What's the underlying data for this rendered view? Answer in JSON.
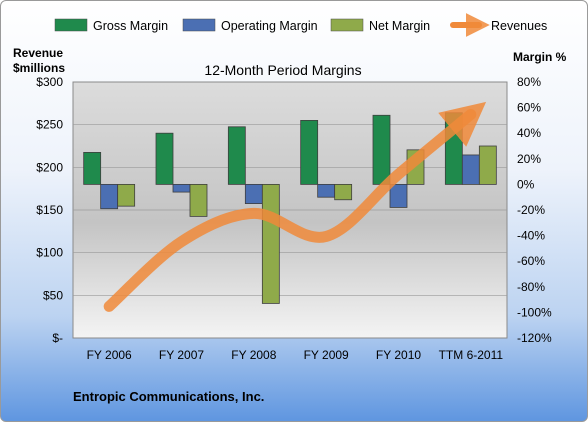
{
  "chart_data": {
    "type": "bar",
    "title": "12-Month Period Margins",
    "categories": [
      "FY 2006",
      "FY 2007",
      "FY 2008",
      "FY 2009",
      "FY 2010",
      "TTM 6-2011"
    ],
    "series": [
      {
        "name": "Gross Margin",
        "axis": "right",
        "color": "#1f8a4c",
        "values": [
          25,
          40,
          45,
          50,
          54,
          56
        ]
      },
      {
        "name": "Operating Margin",
        "axis": "right",
        "color": "#4b6fb3",
        "values": [
          -19,
          -6,
          -15,
          -10,
          -18,
          23
        ]
      },
      {
        "name": "Net Margin",
        "axis": "right",
        "color": "#8faa4a",
        "values": [
          -17,
          -25,
          -93,
          -12,
          27,
          30
        ]
      },
      {
        "name": "Revenues",
        "axis": "left",
        "type": "line",
        "color": "#f08a3a",
        "values": [
          37,
          113,
          146,
          119,
          192,
          262
        ]
      }
    ],
    "left_axis": {
      "title_line1": "Revenue",
      "title_line2": "$millions",
      "range": [
        0,
        300
      ],
      "ticks": [
        {
          "value": 300,
          "label": "$300"
        },
        {
          "value": 250,
          "label": "$250"
        },
        {
          "value": 200,
          "label": "$200"
        },
        {
          "value": 150,
          "label": "$150"
        },
        {
          "value": 100,
          "label": "$100"
        },
        {
          "value": 50,
          "label": "$50"
        },
        {
          "value": 0,
          "label": "$-"
        }
      ]
    },
    "right_axis": {
      "title": "Margin %",
      "range": [
        -120,
        80
      ],
      "ticks": [
        {
          "value": 80,
          "label": "80%"
        },
        {
          "value": 60,
          "label": "60%"
        },
        {
          "value": 40,
          "label": "40%"
        },
        {
          "value": 20,
          "label": "20%"
        },
        {
          "value": 0,
          "label": "0%"
        },
        {
          "value": -20,
          "label": "-20%"
        },
        {
          "value": -40,
          "label": "-40%"
        },
        {
          "value": -60,
          "label": "-60%"
        },
        {
          "value": -80,
          "label": "-80%"
        },
        {
          "value": -100,
          "label": "-100%"
        },
        {
          "value": -120,
          "label": "-120%"
        }
      ]
    },
    "legend_position": "top"
  },
  "footer": {
    "company": "Entropic Communications, Inc."
  }
}
